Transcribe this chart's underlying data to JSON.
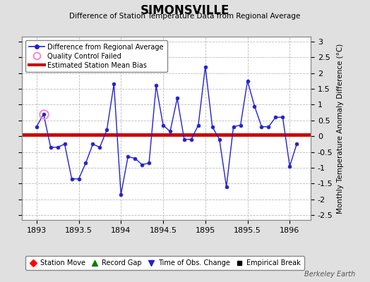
{
  "title": "SIMONSVILLE",
  "subtitle": "Difference of Station Temperature Data from Regional Average",
  "ylabel": "Monthly Temperature Anomaly Difference (°C)",
  "watermark": "Berkeley Earth",
  "xlim": [
    1892.83,
    1896.25
  ],
  "ylim": [
    -2.65,
    3.15
  ],
  "yticks": [
    -2.5,
    -2,
    -1.5,
    -1,
    -0.5,
    0,
    0.5,
    1,
    1.5,
    2,
    2.5,
    3
  ],
  "xticks": [
    1893,
    1893.5,
    1894,
    1894.5,
    1895,
    1895.5,
    1896
  ],
  "mean_bias": 0.05,
  "bias_color": "#cc0000",
  "line_color": "#2222cc",
  "bg_color": "#e0e0e0",
  "plot_bg_color": "#ffffff",
  "grid_color": "#bbbbbb",
  "x_data": [
    1893.0,
    1893.083,
    1893.167,
    1893.25,
    1893.333,
    1893.417,
    1893.5,
    1893.583,
    1893.667,
    1893.75,
    1893.833,
    1893.917,
    1894.0,
    1894.083,
    1894.167,
    1894.25,
    1894.333,
    1894.417,
    1894.5,
    1894.583,
    1894.667,
    1894.75,
    1894.833,
    1894.917,
    1895.0,
    1895.083,
    1895.167,
    1895.25,
    1895.333,
    1895.417,
    1895.5,
    1895.583,
    1895.667,
    1895.75,
    1895.833,
    1895.917,
    1896.0,
    1896.083
  ],
  "y_data": [
    0.3,
    0.7,
    -0.35,
    -0.35,
    -0.25,
    -1.35,
    -1.35,
    -0.85,
    -0.25,
    -0.35,
    0.2,
    1.65,
    -1.85,
    -0.65,
    -0.7,
    -0.9,
    -0.85,
    1.6,
    0.35,
    0.15,
    1.2,
    -0.1,
    -0.1,
    0.35,
    2.2,
    0.3,
    -0.1,
    -1.6,
    0.3,
    0.35,
    1.75,
    0.95,
    0.3,
    0.3,
    0.6,
    0.6,
    -0.95,
    -0.25
  ],
  "qc_fail_x": [
    1893.083
  ],
  "qc_fail_y": [
    0.7
  ]
}
